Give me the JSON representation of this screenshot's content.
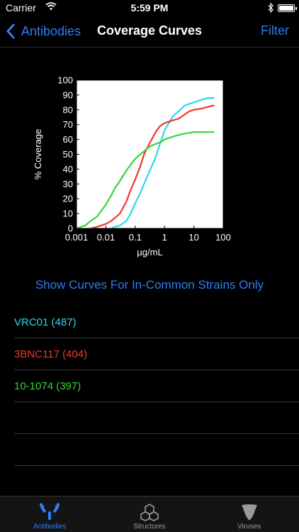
{
  "status_bar": {
    "carrier": "Carrier",
    "time": "5:59 PM"
  },
  "nav": {
    "back_label": "Antibodies",
    "title": "Coverage Curves",
    "filter_label": "Filter"
  },
  "chart_data": {
    "type": "line",
    "xlabel": "µg/mL",
    "ylabel": "% Coverage",
    "x_scale": "log",
    "xlim": [
      0.001,
      100
    ],
    "ylim": [
      0,
      100
    ],
    "x_ticks": [
      "0.001",
      "0.01",
      "0.1",
      "1",
      "10",
      "100"
    ],
    "y_ticks": [
      "0",
      "10",
      "20",
      "30",
      "40",
      "50",
      "60",
      "70",
      "80",
      "90",
      "100"
    ],
    "series": [
      {
        "color": "#2fd6e8",
        "x": [
          0.015,
          0.02,
          0.03,
          0.05,
          0.07,
          0.1,
          0.15,
          0.2,
          0.3,
          0.5,
          0.7,
          1,
          1.5,
          2,
          3,
          5,
          10,
          20,
          30,
          50
        ],
        "y": [
          0,
          1,
          2,
          5,
          10,
          17,
          24,
          30,
          38,
          48,
          57,
          66,
          72,
          76,
          79,
          83,
          85,
          87,
          88,
          88
        ]
      },
      {
        "color": "#f0382b",
        "x": [
          0.003,
          0.005,
          0.007,
          0.01,
          0.015,
          0.02,
          0.03,
          0.05,
          0.07,
          0.1,
          0.15,
          0.2,
          0.3,
          0.5,
          0.7,
          1,
          2,
          3,
          5,
          7,
          10,
          20,
          30,
          50
        ],
        "y": [
          0,
          1,
          2,
          3,
          5,
          7,
          10,
          18,
          26,
          33,
          42,
          50,
          57,
          65,
          69,
          71,
          73,
          74,
          77,
          79,
          80,
          81,
          82,
          83
        ]
      },
      {
        "color": "#35d63a",
        "x": [
          0.001,
          0.002,
          0.003,
          0.005,
          0.007,
          0.01,
          0.015,
          0.02,
          0.03,
          0.05,
          0.07,
          0.1,
          0.15,
          0.2,
          0.3,
          0.5,
          0.7,
          1,
          2,
          3,
          5,
          10,
          20,
          30,
          50
        ],
        "y": [
          0,
          2,
          5,
          8,
          12,
          16,
          22,
          27,
          32,
          39,
          43,
          47,
          50,
          52,
          55,
          57,
          58,
          60,
          62,
          63,
          64,
          65,
          65,
          65,
          65
        ]
      }
    ]
  },
  "toggle_label": "Show Curves For In-Common Strains Only",
  "rows": [
    {
      "label": "VRC01 (487)",
      "color": "#2fd6e8"
    },
    {
      "label": "3BNC117 (404)",
      "color": "#f0382b"
    },
    {
      "label": "10-1074 (397)",
      "color": "#35d63a"
    }
  ],
  "tabs": [
    {
      "label": "Antibodies",
      "icon": "antibody-icon",
      "active": true
    },
    {
      "label": "Structures",
      "icon": "structure-icon",
      "active": false
    },
    {
      "label": "Viruses",
      "icon": "virus-icon",
      "active": false
    }
  ]
}
